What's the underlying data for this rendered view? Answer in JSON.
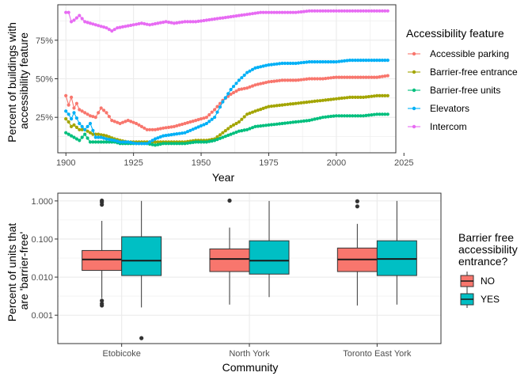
{
  "chart_data": [
    {
      "type": "line",
      "xlabel": "Year",
      "ylabel": "Percent of buildings with accessibility feature",
      "ylabel_lines": [
        "Percent of buildings with",
        "accessibility feature"
      ],
      "xlim": [
        1897,
        2022
      ],
      "ylim": [
        0.02,
        0.98
      ],
      "x_ticks": [
        1900,
        1925,
        1950,
        1975,
        2000,
        2025
      ],
      "x_tick_labels": [
        "1900",
        "1925",
        "1950",
        "1975",
        "2000",
        "2025"
      ],
      "y_ticks": [
        0.25,
        0.5,
        0.75
      ],
      "y_tick_labels": [
        "25%",
        "50%",
        "75%"
      ],
      "grid": true,
      "legend": {
        "title": "Accessibility feature",
        "position": "right",
        "entries": [
          "Accessible parking",
          "Barrier-free entrance",
          "Barrier-free units",
          "Elevators",
          "Intercom"
        ]
      },
      "series": [
        {
          "name": "Accessible parking",
          "color": "#F8766D",
          "points": [
            [
              1900,
              0.39
            ],
            [
              1901,
              0.33
            ],
            [
              1902,
              0.38
            ],
            [
              1903,
              0.31
            ],
            [
              1904,
              0.34
            ],
            [
              1905,
              0.3
            ],
            [
              1907,
              0.28
            ],
            [
              1909,
              0.26
            ],
            [
              1911,
              0.25
            ],
            [
              1913,
              0.31
            ],
            [
              1915,
              0.28
            ],
            [
              1917,
              0.23
            ],
            [
              1920,
              0.21
            ],
            [
              1923,
              0.23
            ],
            [
              1926,
              0.21
            ],
            [
              1928,
              0.19
            ],
            [
              1930,
              0.17
            ],
            [
              1933,
              0.17
            ],
            [
              1936,
              0.18
            ],
            [
              1940,
              0.19
            ],
            [
              1944,
              0.21
            ],
            [
              1948,
              0.23
            ],
            [
              1952,
              0.25
            ],
            [
              1955,
              0.3
            ],
            [
              1958,
              0.36
            ],
            [
              1961,
              0.4
            ],
            [
              1964,
              0.43
            ],
            [
              1967,
              0.44
            ],
            [
              1970,
              0.46
            ],
            [
              1975,
              0.48
            ],
            [
              1980,
              0.49
            ],
            [
              1985,
              0.49
            ],
            [
              1990,
              0.5
            ],
            [
              1995,
              0.5
            ],
            [
              2000,
              0.51
            ],
            [
              2005,
              0.51
            ],
            [
              2010,
              0.51
            ],
            [
              2015,
              0.51
            ],
            [
              2019,
              0.52
            ]
          ]
        },
        {
          "name": "Barrier-free entrance",
          "color": "#A3A500",
          "points": [
            [
              1900,
              0.24
            ],
            [
              1901,
              0.22
            ],
            [
              1902,
              0.19
            ],
            [
              1903,
              0.2
            ],
            [
              1905,
              0.17
            ],
            [
              1907,
              0.17
            ],
            [
              1910,
              0.14
            ],
            [
              1912,
              0.14
            ],
            [
              1915,
              0.13
            ],
            [
              1918,
              0.11
            ],
            [
              1920,
              0.1
            ],
            [
              1923,
              0.09
            ],
            [
              1926,
              0.09
            ],
            [
              1930,
              0.09
            ],
            [
              1933,
              0.09
            ],
            [
              1936,
              0.09
            ],
            [
              1940,
              0.09
            ],
            [
              1944,
              0.09
            ],
            [
              1948,
              0.1
            ],
            [
              1952,
              0.1
            ],
            [
              1955,
              0.11
            ],
            [
              1958,
              0.15
            ],
            [
              1961,
              0.19
            ],
            [
              1964,
              0.22
            ],
            [
              1967,
              0.27
            ],
            [
              1970,
              0.29
            ],
            [
              1975,
              0.32
            ],
            [
              1980,
              0.33
            ],
            [
              1985,
              0.34
            ],
            [
              1990,
              0.35
            ],
            [
              1995,
              0.36
            ],
            [
              2000,
              0.37
            ],
            [
              2005,
              0.38
            ],
            [
              2010,
              0.38
            ],
            [
              2015,
              0.39
            ],
            [
              2019,
              0.39
            ]
          ]
        },
        {
          "name": "Barrier-free units",
          "color": "#00BF7D",
          "points": [
            [
              1900,
              0.15
            ],
            [
              1901,
              0.14
            ],
            [
              1902,
              0.13
            ],
            [
              1903,
              0.12
            ],
            [
              1905,
              0.1
            ],
            [
              1907,
              0.14
            ],
            [
              1909,
              0.09
            ],
            [
              1911,
              0.09
            ],
            [
              1913,
              0.09
            ],
            [
              1915,
              0.09
            ],
            [
              1918,
              0.09
            ],
            [
              1920,
              0.08
            ],
            [
              1923,
              0.08
            ],
            [
              1926,
              0.08
            ],
            [
              1930,
              0.08
            ],
            [
              1933,
              0.07
            ],
            [
              1936,
              0.08
            ],
            [
              1940,
              0.08
            ],
            [
              1944,
              0.08
            ],
            [
              1948,
              0.09
            ],
            [
              1952,
              0.09
            ],
            [
              1955,
              0.1
            ],
            [
              1958,
              0.12
            ],
            [
              1961,
              0.14
            ],
            [
              1964,
              0.16
            ],
            [
              1967,
              0.17
            ],
            [
              1970,
              0.19
            ],
            [
              1975,
              0.2
            ],
            [
              1980,
              0.21
            ],
            [
              1985,
              0.22
            ],
            [
              1990,
              0.23
            ],
            [
              1995,
              0.25
            ],
            [
              2000,
              0.26
            ],
            [
              2005,
              0.26
            ],
            [
              2010,
              0.26
            ],
            [
              2015,
              0.27
            ],
            [
              2019,
              0.27
            ]
          ]
        },
        {
          "name": "Elevators",
          "color": "#00B0F6",
          "points": [
            [
              1900,
              0.29
            ],
            [
              1901,
              0.27
            ],
            [
              1902,
              0.24
            ],
            [
              1903,
              0.28
            ],
            [
              1905,
              0.21
            ],
            [
              1907,
              0.17
            ],
            [
              1909,
              0.21
            ],
            [
              1911,
              0.12
            ],
            [
              1913,
              0.12
            ],
            [
              1915,
              0.11
            ],
            [
              1918,
              0.1
            ],
            [
              1920,
              0.09
            ],
            [
              1923,
              0.09
            ],
            [
              1926,
              0.08
            ],
            [
              1930,
              0.08
            ],
            [
              1933,
              0.11
            ],
            [
              1936,
              0.13
            ],
            [
              1940,
              0.14
            ],
            [
              1944,
              0.15
            ],
            [
              1948,
              0.18
            ],
            [
              1952,
              0.21
            ],
            [
              1955,
              0.25
            ],
            [
              1958,
              0.35
            ],
            [
              1961,
              0.43
            ],
            [
              1964,
              0.49
            ],
            [
              1967,
              0.54
            ],
            [
              1970,
              0.57
            ],
            [
              1975,
              0.59
            ],
            [
              1980,
              0.6
            ],
            [
              1985,
              0.6
            ],
            [
              1990,
              0.61
            ],
            [
              1995,
              0.61
            ],
            [
              2000,
              0.61
            ],
            [
              2005,
              0.62
            ],
            [
              2010,
              0.62
            ],
            [
              2015,
              0.62
            ],
            [
              2019,
              0.62
            ]
          ]
        },
        {
          "name": "Intercom",
          "color": "#E76BF3",
          "points": [
            [
              1900,
              0.93
            ],
            [
              1901,
              0.93
            ],
            [
              1902,
              0.87
            ],
            [
              1903,
              0.88
            ],
            [
              1905,
              0.91
            ],
            [
              1907,
              0.87
            ],
            [
              1909,
              0.86
            ],
            [
              1911,
              0.85
            ],
            [
              1913,
              0.84
            ],
            [
              1915,
              0.83
            ],
            [
              1917,
              0.81
            ],
            [
              1919,
              0.83
            ],
            [
              1922,
              0.84
            ],
            [
              1925,
              0.85
            ],
            [
              1928,
              0.86
            ],
            [
              1931,
              0.85
            ],
            [
              1934,
              0.86
            ],
            [
              1937,
              0.87
            ],
            [
              1940,
              0.86
            ],
            [
              1944,
              0.87
            ],
            [
              1948,
              0.87
            ],
            [
              1952,
              0.88
            ],
            [
              1956,
              0.89
            ],
            [
              1960,
              0.9
            ],
            [
              1964,
              0.91
            ],
            [
              1968,
              0.92
            ],
            [
              1972,
              0.93
            ],
            [
              1976,
              0.93
            ],
            [
              1980,
              0.93
            ],
            [
              1985,
              0.93
            ],
            [
              1990,
              0.94
            ],
            [
              1995,
              0.94
            ],
            [
              2000,
              0.94
            ],
            [
              2005,
              0.94
            ],
            [
              2010,
              0.94
            ],
            [
              2015,
              0.94
            ],
            [
              2019,
              0.94
            ]
          ]
        }
      ]
    },
    {
      "type": "box",
      "xlabel": "Community",
      "ylabel": "Percent of units that are 'barrier-free'",
      "ylabel_lines": [
        "Percent of units that",
        "are 'barrier-free'"
      ],
      "y_scale": "log10",
      "ylim": [
        0.00018,
        1.6
      ],
      "y_ticks": [
        0.001,
        0.01,
        0.1,
        1
      ],
      "y_tick_labels": [
        "0.001",
        "0.010",
        "0.100",
        "1.000"
      ],
      "categories": [
        "Etobicoke",
        "North York",
        "Toronto East York"
      ],
      "grid": true,
      "legend": {
        "title": "Barrier free accessibility entrance?",
        "title_lines": [
          "Barrier free",
          "accessibility",
          "entrance?"
        ],
        "position": "right",
        "entries": [
          "NO",
          "YES"
        ]
      },
      "groups": [
        {
          "name": "NO",
          "color": "#F8766D",
          "boxes": [
            {
              "category": "Etobicoke",
              "min": 0.0028,
              "q1": 0.015,
              "median": 0.029,
              "q3": 0.05,
              "max": 0.3,
              "outliers": [
                1.02,
                0.93,
                0.8,
                0.0024,
                0.002,
                0.0018
              ]
            },
            {
              "category": "North York",
              "min": 0.0019,
              "q1": 0.014,
              "median": 0.03,
              "q3": 0.055,
              "max": 0.2,
              "outliers": [
                1.02
              ]
            },
            {
              "category": "Toronto East York",
              "min": 0.0018,
              "q1": 0.014,
              "median": 0.029,
              "q3": 0.058,
              "max": 0.25,
              "outliers": [
                0.98,
                0.72
              ]
            }
          ]
        },
        {
          "name": "YES",
          "color": "#00BFC4",
          "boxes": [
            {
              "category": "Etobicoke",
              "min": 0.0016,
              "q1": 0.011,
              "median": 0.027,
              "q3": 0.115,
              "max": 1.0,
              "outliers": [
                0.00025
              ]
            },
            {
              "category": "North York",
              "min": 0.003,
              "q1": 0.012,
              "median": 0.027,
              "q3": 0.09,
              "max": 1.0,
              "outliers": []
            },
            {
              "category": "Toronto East York",
              "min": 0.0019,
              "q1": 0.011,
              "median": 0.03,
              "q3": 0.09,
              "max": 1.0,
              "outliers": []
            }
          ]
        }
      ]
    }
  ]
}
